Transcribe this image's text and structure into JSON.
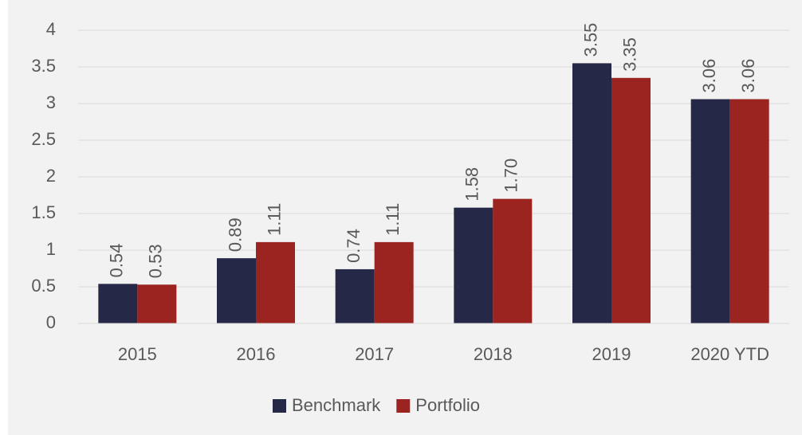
{
  "chart_data": {
    "type": "bar",
    "categories": [
      "2015",
      "2016",
      "2017",
      "2018",
      "2019",
      "2020 YTD"
    ],
    "series": [
      {
        "name": "Benchmark",
        "color": "#262847",
        "values": [
          0.54,
          0.89,
          0.74,
          1.58,
          3.55,
          3.06
        ],
        "value_labels": [
          "0.54",
          "0.89",
          "0.74",
          "1.58",
          "3.55",
          "3.06"
        ]
      },
      {
        "name": "Portfolio",
        "color": "#9b2320",
        "values": [
          0.53,
          1.11,
          1.11,
          1.7,
          3.35,
          3.06
        ],
        "value_labels": [
          "0.53",
          "1.11",
          "1.11",
          "1.70",
          "3.35",
          "3.06"
        ]
      }
    ],
    "ylim": [
      0,
      4
    ],
    "yticks": [
      0,
      0.5,
      1,
      1.5,
      2,
      2.5,
      3,
      3.5,
      4
    ],
    "grid": true,
    "legend": "bottom"
  }
}
